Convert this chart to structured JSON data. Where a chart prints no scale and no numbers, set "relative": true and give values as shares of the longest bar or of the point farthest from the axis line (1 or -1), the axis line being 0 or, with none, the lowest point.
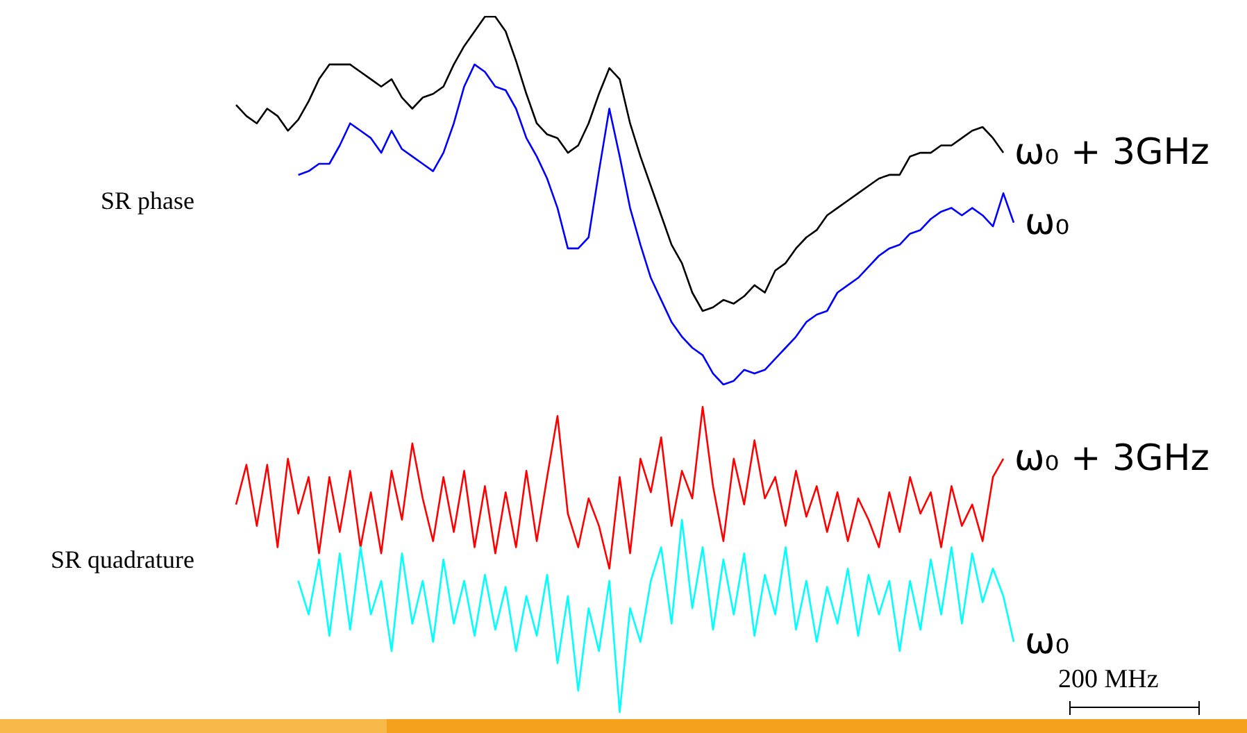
{
  "chart_data": [
    {
      "type": "line",
      "relative": true,
      "ylabel": "SR phase",
      "categories": [
        null,
        null,
        null,
        null,
        null,
        null,
        null,
        null,
        null,
        null,
        null,
        null,
        null,
        null,
        null,
        null,
        null,
        null,
        null,
        null,
        null,
        null,
        null,
        null,
        null,
        null,
        null,
        null,
        null,
        null,
        null,
        null,
        null,
        null,
        null,
        null,
        null,
        null,
        null,
        null,
        null,
        null,
        null,
        null,
        null,
        null,
        null,
        null,
        null,
        null,
        null,
        null,
        null,
        null,
        null,
        null,
        null,
        null,
        null,
        null,
        null,
        null,
        null,
        null,
        null,
        null,
        null,
        null,
        null,
        null,
        null,
        null,
        null,
        null,
        null,
        null
      ],
      "series": [
        {
          "name": "ω₀ + 3GHz",
          "color": "#000000",
          "values": [
            0.76,
            0.73,
            0.71,
            0.75,
            0.73,
            0.69,
            0.72,
            0.77,
            0.83,
            0.87,
            0.87,
            0.87,
            0.85,
            0.83,
            0.81,
            0.83,
            0.78,
            0.75,
            0.78,
            0.79,
            0.81,
            0.87,
            0.92,
            0.96,
            1,
            1,
            0.96,
            0.88,
            0.79,
            0.71,
            0.68,
            0.67,
            0.63,
            0.65,
            0.71,
            0.79,
            0.86,
            0.83,
            0.71,
            0.62,
            0.54,
            0.46,
            0.38,
            0.33,
            0.25,
            0.2,
            0.21,
            0.23,
            0.22,
            0.24,
            0.27,
            0.25,
            0.31,
            0.33,
            0.37,
            0.4,
            0.42,
            0.46,
            0.48,
            0.5,
            0.52,
            0.54,
            0.56,
            0.57,
            0.57,
            0.62,
            0.63,
            0.63,
            0.65,
            0.65,
            0.67,
            0.69,
            0.7,
            0.67,
            0.63,
            null
          ]
        },
        {
          "name": "ω₀",
          "color": "#0000ff",
          "values": [
            null,
            null,
            null,
            null,
            null,
            null,
            0.57,
            0.58,
            0.6,
            0.6,
            0.65,
            0.71,
            0.69,
            0.67,
            0.63,
            0.69,
            0.64,
            0.62,
            0.6,
            0.58,
            0.63,
            0.71,
            0.81,
            0.87,
            0.85,
            0.81,
            0.8,
            0.75,
            0.67,
            0.62,
            0.56,
            0.48,
            0.37,
            0.37,
            0.4,
            0.58,
            0.75,
            0.62,
            0.48,
            0.38,
            0.29,
            0.23,
            0.17,
            0.13,
            0.1,
            0.08,
            0.03,
            0,
            0.01,
            0.04,
            0.03,
            0.04,
            0.07,
            0.1,
            0.13,
            0.17,
            0.19,
            0.2,
            0.25,
            0.27,
            0.29,
            0.32,
            0.35,
            0.37,
            0.38,
            0.41,
            0.42,
            0.45,
            0.47,
            0.48,
            0.46,
            0.48,
            0.46,
            0.43,
            0.52,
            0.44
          ]
        }
      ]
    },
    {
      "type": "line",
      "relative": true,
      "ylabel": "SR quadrature",
      "annotations": [
        "200 MHz"
      ],
      "categories": [
        null,
        null,
        null,
        null,
        null,
        null,
        null,
        null,
        null,
        null,
        null,
        null,
        null,
        null,
        null,
        null,
        null,
        null,
        null,
        null,
        null,
        null,
        null,
        null,
        null,
        null,
        null,
        null,
        null,
        null,
        null,
        null,
        null,
        null,
        null,
        null,
        null,
        null,
        null,
        null,
        null,
        null,
        null,
        null,
        null,
        null,
        null,
        null,
        null,
        null,
        null,
        null,
        null,
        null,
        null,
        null,
        null,
        null,
        null,
        null,
        null,
        null,
        null,
        null,
        null,
        null,
        null,
        null,
        null,
        null,
        null,
        null,
        null,
        null,
        null,
        null
      ],
      "series": [
        {
          "name": "ω₀ + 3GHz",
          "color": "#ff0000",
          "values": [
            0.68,
            0.81,
            0.61,
            0.81,
            0.54,
            0.83,
            0.65,
            0.77,
            0.52,
            0.77,
            0.59,
            0.79,
            0.54,
            0.72,
            0.52,
            0.79,
            0.63,
            0.88,
            0.7,
            0.56,
            0.77,
            0.59,
            0.79,
            0.54,
            0.74,
            0.52,
            0.72,
            0.54,
            0.79,
            0.56,
            0.77,
            0.97,
            0.65,
            0.54,
            0.7,
            0.61,
            0.47,
            0.77,
            0.52,
            0.83,
            0.72,
            0.9,
            0.61,
            0.79,
            0.7,
            1,
            0.74,
            0.56,
            0.83,
            0.68,
            0.89,
            0.7,
            0.77,
            0.61,
            0.79,
            0.64,
            0.74,
            0.59,
            0.72,
            0.56,
            0.7,
            0.63,
            0.54,
            0.72,
            0.59,
            0.77,
            0.65,
            0.72,
            0.54,
            0.74,
            0.61,
            0.68,
            0.56,
            0.77,
            0.83,
            null
          ]
        },
        {
          "name": "ω₀",
          "color": "#00ffff",
          "values": [
            null,
            null,
            null,
            null,
            null,
            null,
            0.43,
            0.32,
            0.5,
            0.25,
            0.52,
            0.27,
            0.54,
            0.32,
            0.43,
            0.2,
            0.52,
            0.29,
            0.43,
            0.23,
            0.5,
            0.29,
            0.43,
            0.25,
            0.45,
            0.27,
            0.41,
            0.2,
            0.38,
            0.25,
            0.45,
            0.16,
            0.38,
            0.07,
            0.34,
            0.2,
            0.43,
            0,
            0.34,
            0.23,
            0.43,
            0.54,
            0.29,
            0.63,
            0.34,
            0.54,
            0.27,
            0.5,
            0.32,
            0.52,
            0.25,
            0.45,
            0.32,
            0.54,
            0.27,
            0.43,
            0.23,
            0.41,
            0.29,
            0.47,
            0.25,
            0.45,
            0.32,
            0.43,
            0.2,
            0.43,
            0.27,
            0.5,
            0.32,
            0.54,
            0.29,
            0.52,
            0.36,
            0.47,
            0.38,
            0.23
          ]
        }
      ]
    }
  ]
}
